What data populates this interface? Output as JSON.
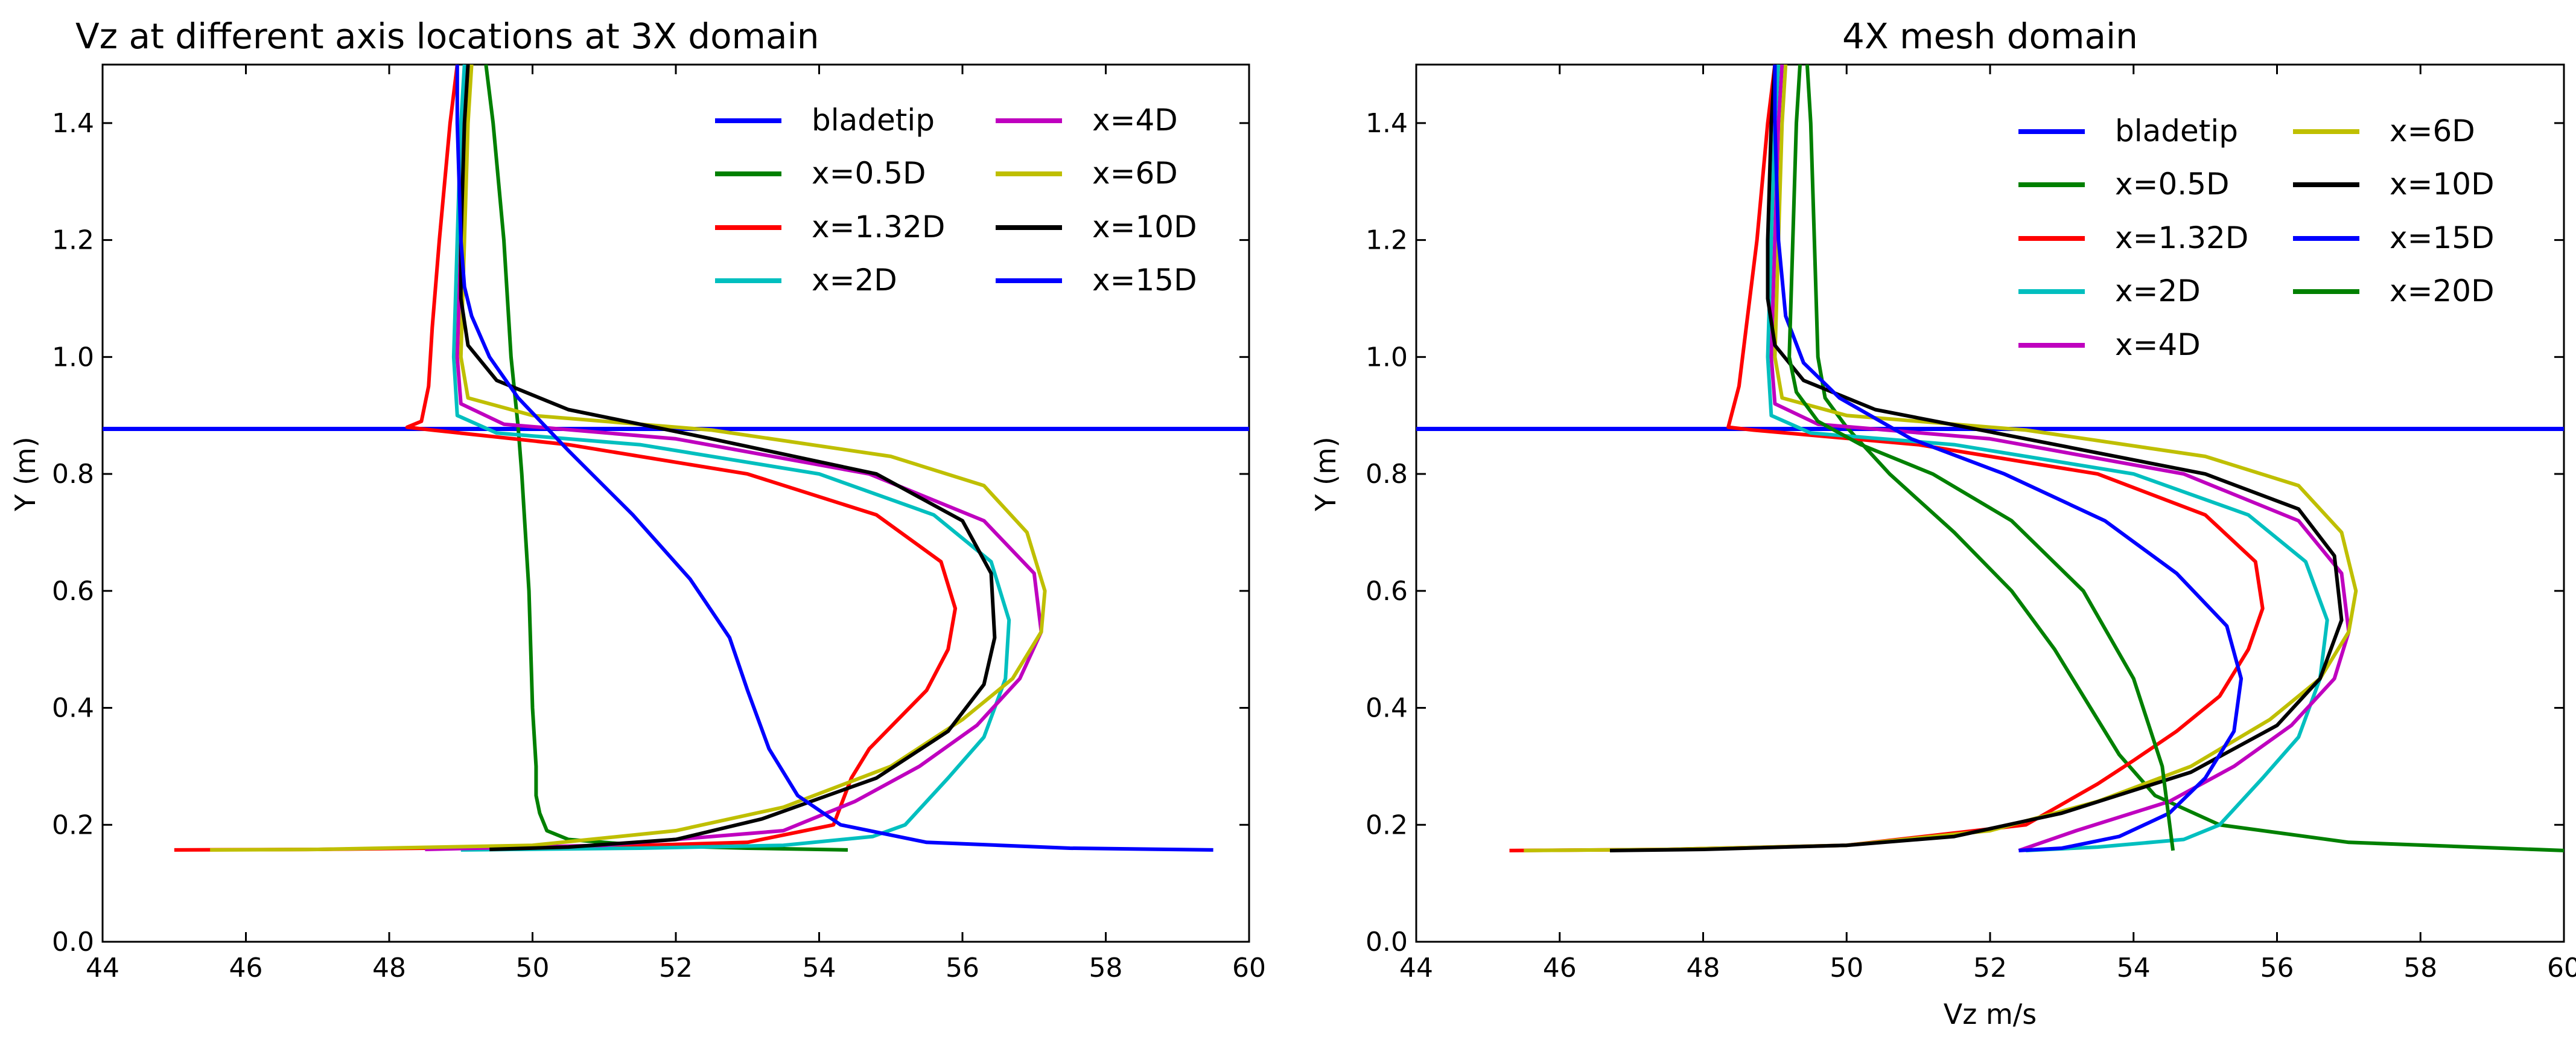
{
  "chart_data": [
    {
      "type": "line",
      "title": "Vz at different axis locations at 3X domain",
      "xlabel": "",
      "ylabel": "Y (m)",
      "xlim": [
        44,
        60
      ],
      "ylim": [
        0.0,
        1.5
      ],
      "xticks": [
        44,
        46,
        48,
        50,
        52,
        54,
        56,
        58,
        60
      ],
      "xtick_labels": [
        "44",
        "46",
        "48",
        "50",
        "52",
        "54",
        "56",
        "58",
        "60"
      ],
      "yticks": [
        0.0,
        0.2,
        0.4,
        0.6,
        0.8,
        1.0,
        1.2,
        1.4
      ],
      "ytick_labels": [
        "0.0",
        "0.2",
        "0.4",
        "0.6",
        "0.8",
        "1.0",
        "1.2",
        "1.4"
      ],
      "grid": false,
      "legend_position": "top-right",
      "legend_columns": 2,
      "series": [
        {
          "name": "bladetip",
          "color": "#0000ff",
          "kind": "hline",
          "y": 0.877
        },
        {
          "name": "x=0.5D",
          "color": "#008000",
          "x": [
            49.35,
            49.45,
            49.6,
            49.7,
            49.8,
            49.85,
            49.95,
            50.0,
            50.05,
            50.05,
            50.1,
            50.2,
            50.5,
            51.5,
            53.0,
            54.4
          ],
          "y": [
            1.5,
            1.4,
            1.2,
            1.0,
            0.88,
            0.8,
            0.6,
            0.4,
            0.3,
            0.25,
            0.22,
            0.19,
            0.175,
            0.165,
            0.16,
            0.157
          ]
        },
        {
          "name": "x=1.32D",
          "color": "#ff0000",
          "x": [
            48.95,
            48.85,
            48.7,
            48.6,
            48.55,
            48.45,
            48.25,
            48.6,
            50.5,
            53.0,
            54.8,
            55.7,
            55.9,
            55.8,
            55.5,
            55.1,
            54.7,
            54.45,
            54.2,
            53.0,
            51.0,
            48.5,
            47.0,
            45.0
          ],
          "y": [
            1.5,
            1.4,
            1.2,
            1.05,
            0.95,
            0.89,
            0.88,
            0.875,
            0.85,
            0.8,
            0.73,
            0.65,
            0.57,
            0.5,
            0.43,
            0.38,
            0.33,
            0.28,
            0.2,
            0.17,
            0.163,
            0.16,
            0.158,
            0.157
          ]
        },
        {
          "name": "x=2D",
          "color": "#00bfbf",
          "x": [
            49.05,
            49.0,
            48.95,
            48.9,
            48.95,
            49.5,
            51.5,
            54.0,
            55.6,
            56.4,
            56.65,
            56.6,
            56.3,
            55.8,
            55.2,
            54.75,
            53.5,
            51.5,
            49.0
          ],
          "y": [
            1.5,
            1.4,
            1.2,
            1.0,
            0.9,
            0.87,
            0.85,
            0.8,
            0.73,
            0.65,
            0.55,
            0.45,
            0.35,
            0.28,
            0.2,
            0.18,
            0.165,
            0.16,
            0.157
          ]
        },
        {
          "name": "x=4D",
          "color": "#bf00bf",
          "x": [
            49.1,
            49.05,
            49.0,
            48.95,
            49.0,
            49.6,
            52.0,
            54.7,
            56.3,
            57.0,
            57.1,
            56.8,
            56.2,
            55.4,
            54.5,
            53.5,
            51.0,
            48.5
          ],
          "y": [
            1.5,
            1.4,
            1.2,
            1.0,
            0.92,
            0.885,
            0.86,
            0.8,
            0.72,
            0.63,
            0.53,
            0.45,
            0.37,
            0.3,
            0.24,
            0.19,
            0.165,
            0.158
          ]
        },
        {
          "name": "x=6D",
          "color": "#bfbf00",
          "x": [
            49.15,
            49.1,
            49.05,
            49.0,
            49.1,
            50.0,
            52.5,
            55.0,
            56.3,
            56.9,
            57.15,
            57.1,
            56.7,
            56.0,
            55.0,
            53.5,
            52.0,
            50.0,
            47.0,
            45.5
          ],
          "y": [
            1.5,
            1.4,
            1.2,
            1.0,
            0.93,
            0.9,
            0.875,
            0.83,
            0.78,
            0.7,
            0.6,
            0.53,
            0.45,
            0.38,
            0.3,
            0.23,
            0.19,
            0.165,
            0.158,
            0.157
          ]
        },
        {
          "name": "x=10D",
          "color": "#000000",
          "x": [
            49.1,
            49.05,
            49.0,
            49.0,
            49.1,
            49.5,
            50.5,
            52.5,
            54.8,
            56.0,
            56.4,
            56.45,
            56.3,
            55.8,
            54.8,
            53.2,
            52.0,
            50.5,
            49.4
          ],
          "y": [
            1.5,
            1.4,
            1.2,
            1.1,
            1.02,
            0.96,
            0.91,
            0.86,
            0.8,
            0.72,
            0.63,
            0.52,
            0.44,
            0.36,
            0.28,
            0.21,
            0.175,
            0.162,
            0.158
          ]
        },
        {
          "name": "x=15D",
          "color": "#0000ff",
          "x": [
            48.95,
            48.95,
            49.0,
            49.05,
            49.15,
            49.4,
            49.8,
            50.5,
            51.4,
            52.2,
            52.75,
            53.0,
            53.3,
            53.7,
            54.3,
            55.5,
            57.5,
            59.5
          ],
          "y": [
            1.5,
            1.4,
            1.2,
            1.12,
            1.07,
            1.0,
            0.93,
            0.84,
            0.73,
            0.62,
            0.52,
            0.43,
            0.33,
            0.25,
            0.2,
            0.17,
            0.16,
            0.157
          ]
        }
      ]
    },
    {
      "type": "line",
      "title": "4X mesh domain",
      "xlabel": "Vz m/s",
      "ylabel": "Y (m)",
      "xlim": [
        44,
        60
      ],
      "ylim": [
        0.0,
        1.5
      ],
      "xticks": [
        44,
        46,
        48,
        50,
        52,
        54,
        56,
        58,
        60
      ],
      "xtick_labels": [
        "44",
        "46",
        "48",
        "50",
        "52",
        "54",
        "56",
        "58",
        "60"
      ],
      "yticks": [
        0.0,
        0.2,
        0.4,
        0.6,
        0.8,
        1.0,
        1.2,
        1.4
      ],
      "ytick_labels": [
        "0.0",
        "0.2",
        "0.4",
        "0.6",
        "0.8",
        "1.0",
        "1.2",
        "1.4"
      ],
      "grid": false,
      "legend_position": "top-right",
      "legend_columns": 2,
      "series": [
        {
          "name": "bladetip",
          "color": "#0000ff",
          "kind": "hline",
          "y": 0.877
        },
        {
          "name": "x=0.5D",
          "color": "#008000",
          "x": [
            49.45,
            49.5,
            49.55,
            49.6,
            49.7,
            50.0,
            50.6,
            51.5,
            52.3,
            52.9,
            53.4,
            53.8,
            54.3,
            55.2,
            57.0,
            60.0
          ],
          "y": [
            1.5,
            1.4,
            1.2,
            1.0,
            0.93,
            0.88,
            0.8,
            0.7,
            0.6,
            0.5,
            0.4,
            0.32,
            0.25,
            0.2,
            0.17,
            0.156
          ]
        },
        {
          "name": "x=1.32D",
          "color": "#ff0000",
          "x": [
            49.0,
            48.9,
            48.75,
            48.6,
            48.5,
            48.35,
            48.7,
            51.0,
            53.5,
            55.0,
            55.7,
            55.8,
            55.6,
            55.2,
            54.6,
            54.0,
            53.5,
            52.5,
            50.0,
            47.5,
            45.3
          ],
          "y": [
            1.5,
            1.4,
            1.2,
            1.05,
            0.95,
            0.88,
            0.875,
            0.85,
            0.8,
            0.73,
            0.65,
            0.57,
            0.5,
            0.42,
            0.36,
            0.31,
            0.27,
            0.2,
            0.165,
            0.158,
            0.156
          ]
        },
        {
          "name": "x=2D",
          "color": "#00bfbf",
          "x": [
            49.05,
            49.0,
            48.95,
            48.9,
            48.95,
            49.5,
            51.5,
            54.0,
            55.6,
            56.4,
            56.7,
            56.6,
            56.3,
            55.8,
            55.2,
            54.7,
            53.5,
            52.5
          ],
          "y": [
            1.5,
            1.4,
            1.2,
            1.0,
            0.9,
            0.87,
            0.85,
            0.8,
            0.73,
            0.65,
            0.55,
            0.45,
            0.35,
            0.28,
            0.2,
            0.175,
            0.162,
            0.156
          ]
        },
        {
          "name": "x=4D",
          "color": "#bf00bf",
          "x": [
            49.1,
            49.05,
            49.0,
            48.95,
            49.0,
            49.6,
            52.0,
            54.7,
            56.3,
            56.9,
            57.0,
            56.8,
            56.2,
            55.4,
            54.5,
            53.2,
            52.4
          ],
          "y": [
            1.5,
            1.4,
            1.2,
            1.0,
            0.92,
            0.885,
            0.86,
            0.8,
            0.72,
            0.63,
            0.53,
            0.45,
            0.37,
            0.3,
            0.24,
            0.19,
            0.156
          ]
        },
        {
          "name": "x=6D",
          "color": "#bfbf00",
          "x": [
            49.15,
            49.1,
            49.05,
            49.0,
            49.1,
            50.0,
            52.5,
            55.0,
            56.3,
            56.9,
            57.1,
            57.0,
            56.6,
            55.9,
            54.8,
            53.5,
            52.0,
            50.0,
            47.5,
            45.5
          ],
          "y": [
            1.5,
            1.4,
            1.2,
            1.0,
            0.93,
            0.9,
            0.875,
            0.83,
            0.78,
            0.7,
            0.6,
            0.53,
            0.45,
            0.38,
            0.3,
            0.24,
            0.19,
            0.165,
            0.158,
            0.156
          ]
        },
        {
          "name": "x=10D",
          "color": "#000000",
          "x": [
            49.0,
            48.95,
            48.9,
            48.9,
            49.0,
            49.4,
            50.4,
            52.5,
            55.0,
            56.3,
            56.8,
            56.9,
            56.6,
            56.0,
            54.8,
            53.0,
            51.5,
            50.0,
            48.0,
            46.7
          ],
          "y": [
            1.5,
            1.4,
            1.2,
            1.1,
            1.02,
            0.96,
            0.91,
            0.86,
            0.8,
            0.74,
            0.66,
            0.55,
            0.45,
            0.37,
            0.29,
            0.22,
            0.18,
            0.165,
            0.158,
            0.156
          ]
        },
        {
          "name": "x=15D",
          "color": "#0000ff",
          "x": [
            49.0,
            49.0,
            49.05,
            49.15,
            49.4,
            49.9,
            50.9,
            52.2,
            53.6,
            54.6,
            55.3,
            55.5,
            55.4,
            55.0,
            54.5,
            53.8,
            53.0,
            52.4
          ],
          "y": [
            1.5,
            1.4,
            1.2,
            1.07,
            0.99,
            0.93,
            0.86,
            0.8,
            0.72,
            0.63,
            0.54,
            0.45,
            0.36,
            0.28,
            0.22,
            0.18,
            0.16,
            0.156
          ]
        },
        {
          "name": "x=20D",
          "color": "#008000",
          "x": [
            49.35,
            49.3,
            49.25,
            49.2,
            49.3,
            49.6,
            50.2,
            51.2,
            52.3,
            53.3,
            54.0,
            54.4,
            54.55
          ],
          "y": [
            1.5,
            1.4,
            1.2,
            1.0,
            0.94,
            0.89,
            0.85,
            0.8,
            0.72,
            0.6,
            0.45,
            0.3,
            0.156
          ]
        }
      ]
    }
  ]
}
